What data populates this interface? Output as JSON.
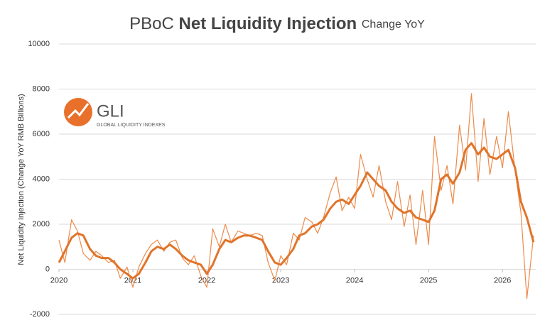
{
  "chart_data": {
    "type": "line",
    "title": {
      "prefix": "PBoC",
      "main": "Net Liquidity Injection",
      "suffix": "Change YoY"
    },
    "logo": {
      "name": "GLI",
      "tagline": "GLOBAL LIQUIDITY INDEXES"
    },
    "y_label": "Net Liquidity Injection (Change YoY  RMB Billions)",
    "x": [
      2020,
      2020.08,
      2020.17,
      2020.25,
      2020.33,
      2020.42,
      2020.5,
      2020.58,
      2020.67,
      2020.75,
      2020.83,
      2020.92,
      2021,
      2021.08,
      2021.17,
      2021.25,
      2021.33,
      2021.42,
      2021.5,
      2021.58,
      2021.67,
      2021.75,
      2021.83,
      2021.92,
      2022,
      2022.08,
      2022.17,
      2022.25,
      2022.33,
      2022.42,
      2022.5,
      2022.58,
      2022.67,
      2022.75,
      2022.83,
      2022.92,
      2023,
      2023.08,
      2023.17,
      2023.25,
      2023.33,
      2023.42,
      2023.5,
      2023.58,
      2023.67,
      2023.75,
      2023.83,
      2023.92,
      2024,
      2024.08,
      2024.17,
      2024.25,
      2024.33,
      2024.42,
      2024.5,
      2024.58,
      2024.67,
      2024.75,
      2024.83,
      2024.92,
      2025,
      2025.08,
      2025.17,
      2025.25,
      2025.33,
      2025.42,
      2025.5,
      2025.58,
      2025.67,
      2025.75,
      2025.83,
      2025.92,
      2026,
      2026.08,
      2026.17,
      2026.25,
      2026.33,
      2026.42
    ],
    "series": [
      {
        "color": "#ec8a4a",
        "width": 1.2,
        "values": [
          1300,
          300,
          2200,
          1700,
          700,
          400,
          800,
          600,
          300,
          400,
          -400,
          100,
          -800,
          100,
          700,
          1100,
          1300,
          800,
          1200,
          1300,
          500,
          200,
          600,
          -300,
          -800,
          1800,
          1000,
          2000,
          1200,
          1700,
          1600,
          1500,
          1600,
          1500,
          300,
          -500,
          600,
          200,
          1600,
          1300,
          2300,
          2100,
          1600,
          2300,
          3400,
          4100,
          2600,
          3200,
          2700,
          5100,
          4000,
          3200,
          4600,
          3000,
          2200,
          3900,
          1900,
          3300,
          1100,
          3500,
          1100,
          5900,
          3500,
          4600,
          2900,
          6400,
          4400,
          7800,
          3900,
          6700,
          4200,
          5900,
          4500,
          7000,
          4400,
          2500,
          -1300,
          1500
        ]
      },
      {
        "color": "#e0742a",
        "width": 3,
        "values": [
          300,
          800,
          1400,
          1600,
          1500,
          900,
          600,
          500,
          500,
          300,
          0,
          -200,
          -400,
          -200,
          300,
          800,
          1000,
          900,
          1100,
          900,
          600,
          400,
          300,
          200,
          -200,
          200,
          900,
          1300,
          1200,
          1400,
          1500,
          1500,
          1400,
          1300,
          800,
          300,
          200,
          500,
          900,
          1500,
          1600,
          1900,
          2000,
          2200,
          2700,
          3000,
          3100,
          2900,
          3300,
          3700,
          4300,
          4000,
          3700,
          3500,
          3000,
          2700,
          2500,
          2600,
          2300,
          2200,
          2100,
          2600,
          4000,
          4200,
          3800,
          4300,
          5300,
          5600,
          5100,
          5400,
          5000,
          4900,
          5100,
          5300,
          4500,
          3000,
          2300,
          1200
        ]
      }
    ],
    "xlim": [
      2020,
      2026.45
    ],
    "xticks": [
      2020,
      2021,
      2022,
      2023,
      2024,
      2025,
      2026
    ],
    "ylim": [
      -2000,
      10000
    ],
    "yticks": [
      -2000,
      0,
      2000,
      4000,
      6000,
      8000,
      10000
    ],
    "grid": true
  }
}
